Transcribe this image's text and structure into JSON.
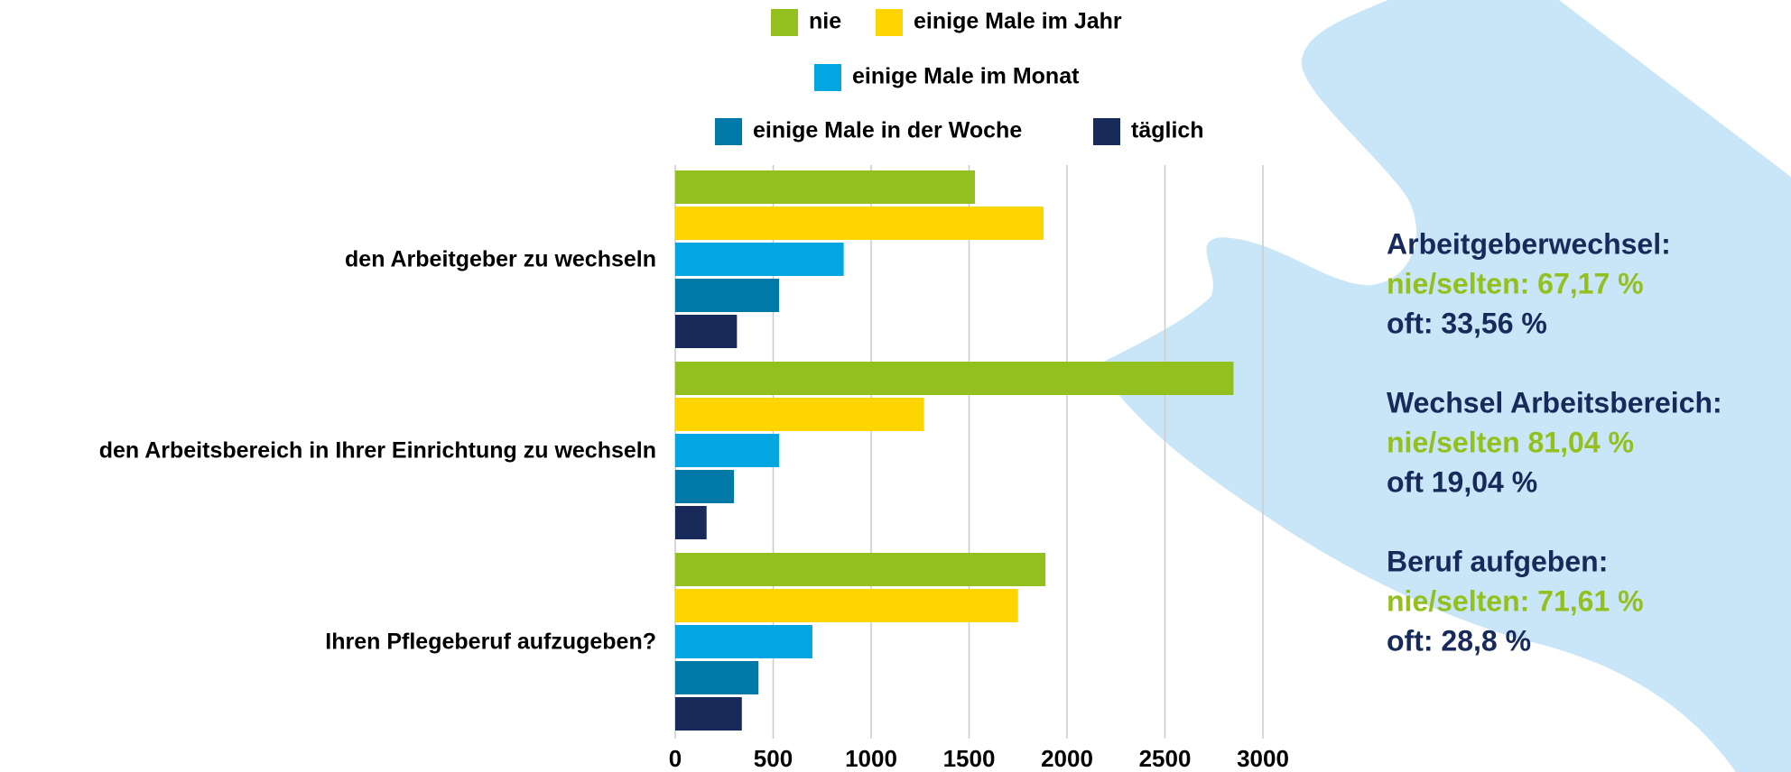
{
  "chart_data": {
    "type": "barh",
    "categories": [
      "den Arbeitgeber zu wechseln",
      "den Arbeitsbereich in Ihrer Einrichtung zu wechseln",
      "Ihren Pflegeberuf aufzugeben?"
    ],
    "series": [
      {
        "name": "nie",
        "color": "#93c01f",
        "values": [
          1530,
          2850,
          1890
        ]
      },
      {
        "name": "einige Male im Jahr",
        "color": "#ffd500",
        "values": [
          1880,
          1270,
          1750
        ]
      },
      {
        "name": "einige Male im Monat",
        "color": "#04a6e2",
        "values": [
          860,
          530,
          700
        ]
      },
      {
        "name": "einige Male in der Woche",
        "color": "#0078a8",
        "values": [
          530,
          300,
          425
        ]
      },
      {
        "name": "täglich",
        "color": "#172a5a",
        "values": [
          315,
          160,
          340
        ]
      }
    ],
    "xlim": [
      0,
      3000
    ],
    "xticks": [
      0,
      500,
      1000,
      1500,
      2000,
      2500,
      3000
    ],
    "grid": true,
    "annotations": [
      {
        "title": "Arbeitgeberwechsel:",
        "low": "nie/selten: 67,17 %",
        "high": "oft: 33,56 %"
      },
      {
        "title": "Wechsel Arbeitsbereich:",
        "low": "nie/selten 81,04 %",
        "high": "oft 19,04 %"
      },
      {
        "title": "Beruf aufgeben:",
        "low": "nie/selten: 71,61 %",
        "high": "oft: 28,8 %"
      }
    ],
    "annotation_colors": {
      "title": "#172a5a",
      "low": "#93c01f",
      "high": "#172a5a"
    }
  }
}
